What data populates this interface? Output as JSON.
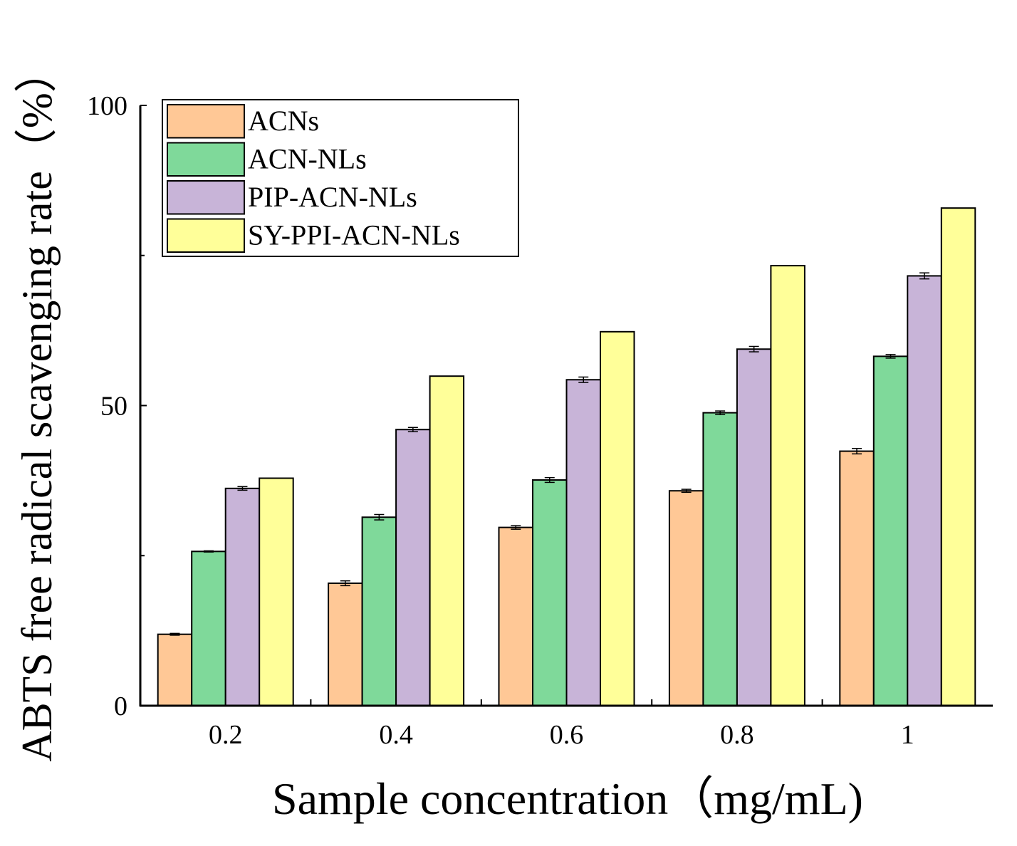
{
  "chart_data": {
    "type": "bar",
    "title": "",
    "xlabel": "Sample concentration（mg/mL)",
    "ylabel": "ABTS free radical scavenging rate（%）",
    "ylim": [
      0,
      100
    ],
    "yticks": [
      "0",
      "50",
      "100"
    ],
    "categories": [
      "0.2",
      "0.4",
      "0.6",
      "0.8",
      "1"
    ],
    "legend_position": "top-left",
    "grid": false,
    "series": [
      {
        "name": "ACNs",
        "color": "#FFC896",
        "values": [
          11.9,
          20.4,
          29.7,
          35.8,
          42.4
        ],
        "errors": [
          0.15,
          0.4,
          0.3,
          0.25,
          0.45
        ]
      },
      {
        "name": "ACN-NLs",
        "color": "#7FD99A",
        "values": [
          25.7,
          31.4,
          37.6,
          48.8,
          58.2
        ],
        "errors": [
          0.1,
          0.45,
          0.4,
          0.3,
          0.3
        ]
      },
      {
        "name": "PIP-ACN-NLs",
        "color": "#C8B4D8",
        "values": [
          36.2,
          46.0,
          54.3,
          59.4,
          71.6
        ],
        "errors": [
          0.3,
          0.35,
          0.45,
          0.45,
          0.5
        ]
      },
      {
        "name": "SY-PPI-ACN-NLs",
        "color": "#FFFF99",
        "values": [
          37.9,
          54.9,
          62.3,
          73.3,
          82.9
        ],
        "errors": [
          0,
          0,
          0,
          0,
          0
        ]
      }
    ]
  }
}
